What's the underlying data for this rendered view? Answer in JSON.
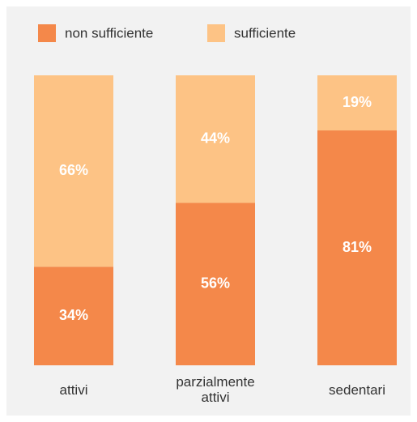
{
  "chart_data": {
    "type": "stacked_bar",
    "categories": [
      "attivi",
      "parzialmente attivi",
      "sedentari"
    ],
    "series": [
      {
        "name": "non sufficiente",
        "color": "#f4884a",
        "values": [
          34,
          56,
          81
        ],
        "value_labels": [
          "34%",
          "56%",
          "81%"
        ]
      },
      {
        "name": "sufficiente",
        "color": "#fdc385",
        "values": [
          66,
          44,
          19
        ],
        "value_labels": [
          "66%",
          "44%",
          "19%"
        ]
      }
    ],
    "ylim": [
      0,
      100
    ]
  }
}
